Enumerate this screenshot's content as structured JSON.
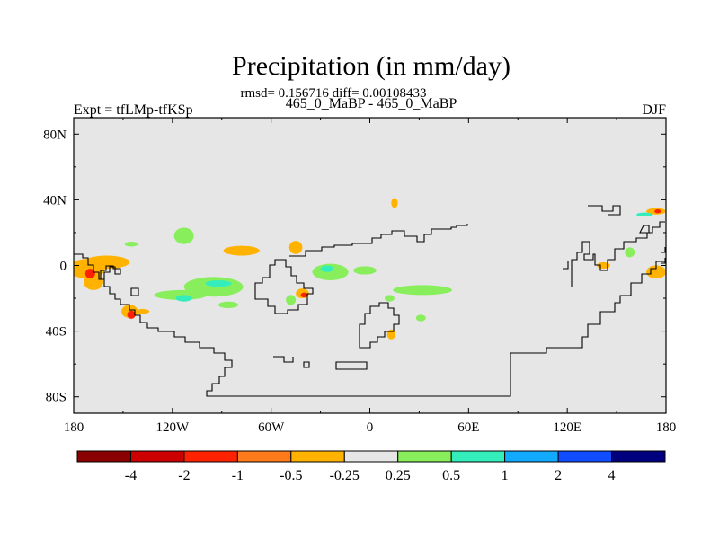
{
  "chart_data": {
    "type": "heatmap",
    "title": "Precipitation (in mm/day)",
    "subtitle": "rmsd= 0.156716 diff= 0.00108433",
    "left_label": "Expt = tfLMp-tfKSp",
    "center_label": "465_0_MaBP - 465_0_MaBP",
    "right_label": "DJF",
    "x_range": [
      -180,
      180
    ],
    "y_range": [
      -90,
      90
    ],
    "x_ticks": [
      {
        "value": -180,
        "label": "180"
      },
      {
        "value": -120,
        "label": "120W"
      },
      {
        "value": -60,
        "label": "60W"
      },
      {
        "value": 0,
        "label": "0"
      },
      {
        "value": 60,
        "label": "60E"
      },
      {
        "value": 120,
        "label": "120E"
      },
      {
        "value": 180,
        "label": "180"
      }
    ],
    "y_ticks": [
      {
        "value": 80,
        "label": "80N"
      },
      {
        "value": 40,
        "label": "40N"
      },
      {
        "value": 0,
        "label": "0"
      },
      {
        "value": -40,
        "label": "40S"
      },
      {
        "value": -80,
        "label": "80S"
      }
    ],
    "colorbar": {
      "colors": [
        "#8b0000",
        "#cd0000",
        "#ff2200",
        "#ff7a1a",
        "#ffb300",
        "#e6e6e6",
        "#88ee5c",
        "#33eebb",
        "#11aaff",
        "#0f4dff",
        "#00007f"
      ],
      "labels": [
        "-4",
        "-2",
        "-1",
        "-0.5",
        "-0.25",
        "0.25",
        "0.5",
        "1",
        "2",
        "4"
      ]
    },
    "background_color": "#e6e6e6",
    "anomaly_patches": [
      {
        "lon": -172,
        "lat": -2,
        "rx": 11,
        "ry": 6,
        "level": -0.3
      },
      {
        "lon": -160,
        "lat": 2,
        "rx": 14,
        "ry": 4,
        "level": -0.3
      },
      {
        "lon": -168,
        "lat": -10,
        "rx": 6,
        "ry": 5,
        "level": -0.5
      },
      {
        "lon": -170,
        "lat": -5,
        "rx": 3,
        "ry": 3,
        "level": -1.5
      },
      {
        "lon": -146,
        "lat": -28,
        "rx": 5,
        "ry": 4,
        "level": -0.5
      },
      {
        "lon": -145,
        "lat": -30,
        "rx": 2.5,
        "ry": 2.5,
        "level": -1.5
      },
      {
        "lon": -138,
        "lat": -28,
        "rx": 4,
        "ry": 1.5,
        "level": -0.3
      },
      {
        "lon": -115,
        "lat": -18,
        "rx": 16,
        "ry": 3,
        "level": 0.3
      },
      {
        "lon": -113,
        "lat": -20,
        "rx": 5,
        "ry": 2,
        "level": 0.7
      },
      {
        "lon": -95,
        "lat": -13,
        "rx": 18,
        "ry": 6,
        "level": 0.3
      },
      {
        "lon": -92,
        "lat": -11,
        "rx": 8,
        "ry": 2,
        "level": 0.7
      },
      {
        "lon": -86,
        "lat": -24,
        "rx": 6,
        "ry": 2,
        "level": 0.3
      },
      {
        "lon": -113,
        "lat": 18,
        "rx": 6,
        "ry": 5,
        "level": 0.3
      },
      {
        "lon": -78,
        "lat": 9,
        "rx": 11,
        "ry": 3,
        "level": -0.3
      },
      {
        "lon": -145,
        "lat": 13,
        "rx": 4,
        "ry": 1.5,
        "level": 0.3
      },
      {
        "lon": -24,
        "lat": -4,
        "rx": 11,
        "ry": 5,
        "level": 0.3
      },
      {
        "lon": -26,
        "lat": -2,
        "rx": 4,
        "ry": 2,
        "level": 0.7
      },
      {
        "lon": -3,
        "lat": -3,
        "rx": 7,
        "ry": 2.5,
        "level": 0.3
      },
      {
        "lon": -45,
        "lat": 11,
        "rx": 4,
        "ry": 4,
        "level": -0.3
      },
      {
        "lon": -41,
        "lat": -17,
        "rx": 4,
        "ry": 3,
        "level": -0.3
      },
      {
        "lon": -40,
        "lat": -18,
        "rx": 2,
        "ry": 1.5,
        "level": -1.5
      },
      {
        "lon": -48,
        "lat": -21,
        "rx": 3,
        "ry": 3,
        "level": 0.3
      },
      {
        "lon": 32,
        "lat": -15,
        "rx": 18,
        "ry": 3,
        "level": 0.3
      },
      {
        "lon": 12,
        "lat": -20,
        "rx": 3,
        "ry": 2,
        "level": 0.3
      },
      {
        "lon": 31,
        "lat": -32,
        "rx": 3,
        "ry": 2,
        "level": 0.3
      },
      {
        "lon": 13,
        "lat": -42,
        "rx": 2.5,
        "ry": 3,
        "level": -0.3
      },
      {
        "lon": 15,
        "lat": 38,
        "rx": 2,
        "ry": 3,
        "level": -0.3
      },
      {
        "lon": 142,
        "lat": 0,
        "rx": 4,
        "ry": 2,
        "level": -0.3
      },
      {
        "lon": 158,
        "lat": 8,
        "rx": 3,
        "ry": 3,
        "level": 0.3
      },
      {
        "lon": 174,
        "lat": 33,
        "rx": 6,
        "ry": 2,
        "level": -0.3
      },
      {
        "lon": 175,
        "lat": 33,
        "rx": 2,
        "ry": 1.2,
        "level": -1.5
      },
      {
        "lon": 167,
        "lat": 31,
        "rx": 5,
        "ry": 1.2,
        "level": 0.5
      },
      {
        "lon": 174,
        "lat": -4,
        "rx": 6,
        "ry": 4,
        "level": -0.3
      }
    ]
  }
}
